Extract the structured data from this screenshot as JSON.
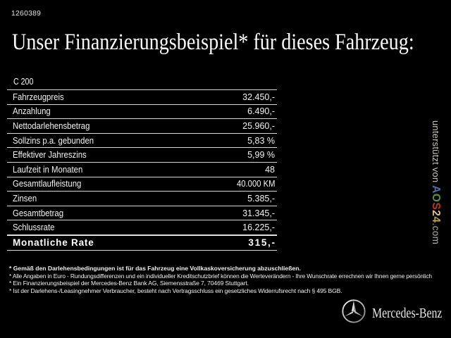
{
  "page": {
    "background_color": "#000000",
    "ref_number": "1260389",
    "title": "Unser Finanzierungsbeispiel* für dieses Fahrzeug:"
  },
  "vehicle": {
    "model": "C 200"
  },
  "finance_table": {
    "rows": [
      {
        "label": "Fahrzeugpreis",
        "value": "32.450,-"
      },
      {
        "label": "Anzahlung",
        "value": "6.490,-"
      },
      {
        "label": "Nettodarlehensbetrag",
        "value": "25.960,-"
      },
      {
        "label": "Sollzins p.a. gebunden",
        "value": "5,83 %"
      },
      {
        "label": "Effektiver Jahreszins",
        "value": "5,99 %"
      },
      {
        "label": "Laufzeit in Monaten",
        "value": "48"
      },
      {
        "label": "Gesamtlaufleistung",
        "value": "40.000 KM"
      },
      {
        "label": "Zinsen",
        "value": "5.385,-"
      },
      {
        "label": "Gesamtbetrag",
        "value": "31.345,-"
      },
      {
        "label": "Schlussrate",
        "value": "16.225,-"
      }
    ],
    "total_row": {
      "label": "Monatliche Rate",
      "value": "315,-"
    }
  },
  "footnotes": [
    "* Gemäß den Darlehensbedingungen ist für das Fahrzeug eine Vollkaskoversicherung abzuschließen.",
    "* Alle Angaben in Euro - Rundungsdifferenzen und ein individueller Kreditschutzbrief können die Werteverändern - Ihre Wunschrate errechnen wir Ihnen gerne persönlich",
    "* Ein Finanzierungsbeispiel der Mercedes-Benz Bank AG, Siemensstraße 7, 70469 Stuttgart.",
    "* Ist der Darlehens-/Leasingnehmer Verbraucher, besteht nach Vertragsschluss ein gesetzliches Widerrufsrecht nach § 495 BGB."
  ],
  "side_credit": {
    "supported_by": "unterstützt von ",
    "brand_letters": [
      {
        "char": "A",
        "color": "#4d6fa8"
      },
      {
        "char": "O",
        "color": "#579441"
      },
      {
        "char": "S",
        "color": "#b53528"
      },
      {
        "char": "2",
        "color": "#d8c489"
      },
      {
        "char": "4",
        "color": "#bfa13a"
      }
    ],
    "domain_suffix": ".com"
  },
  "branding": {
    "logo_icon": "mercedes-star-icon",
    "wordmark": "Mercedes-Benz",
    "ring_color": "#cccccc",
    "star_light": "#f2f2f2",
    "star_dark": "#8f8f8f"
  }
}
